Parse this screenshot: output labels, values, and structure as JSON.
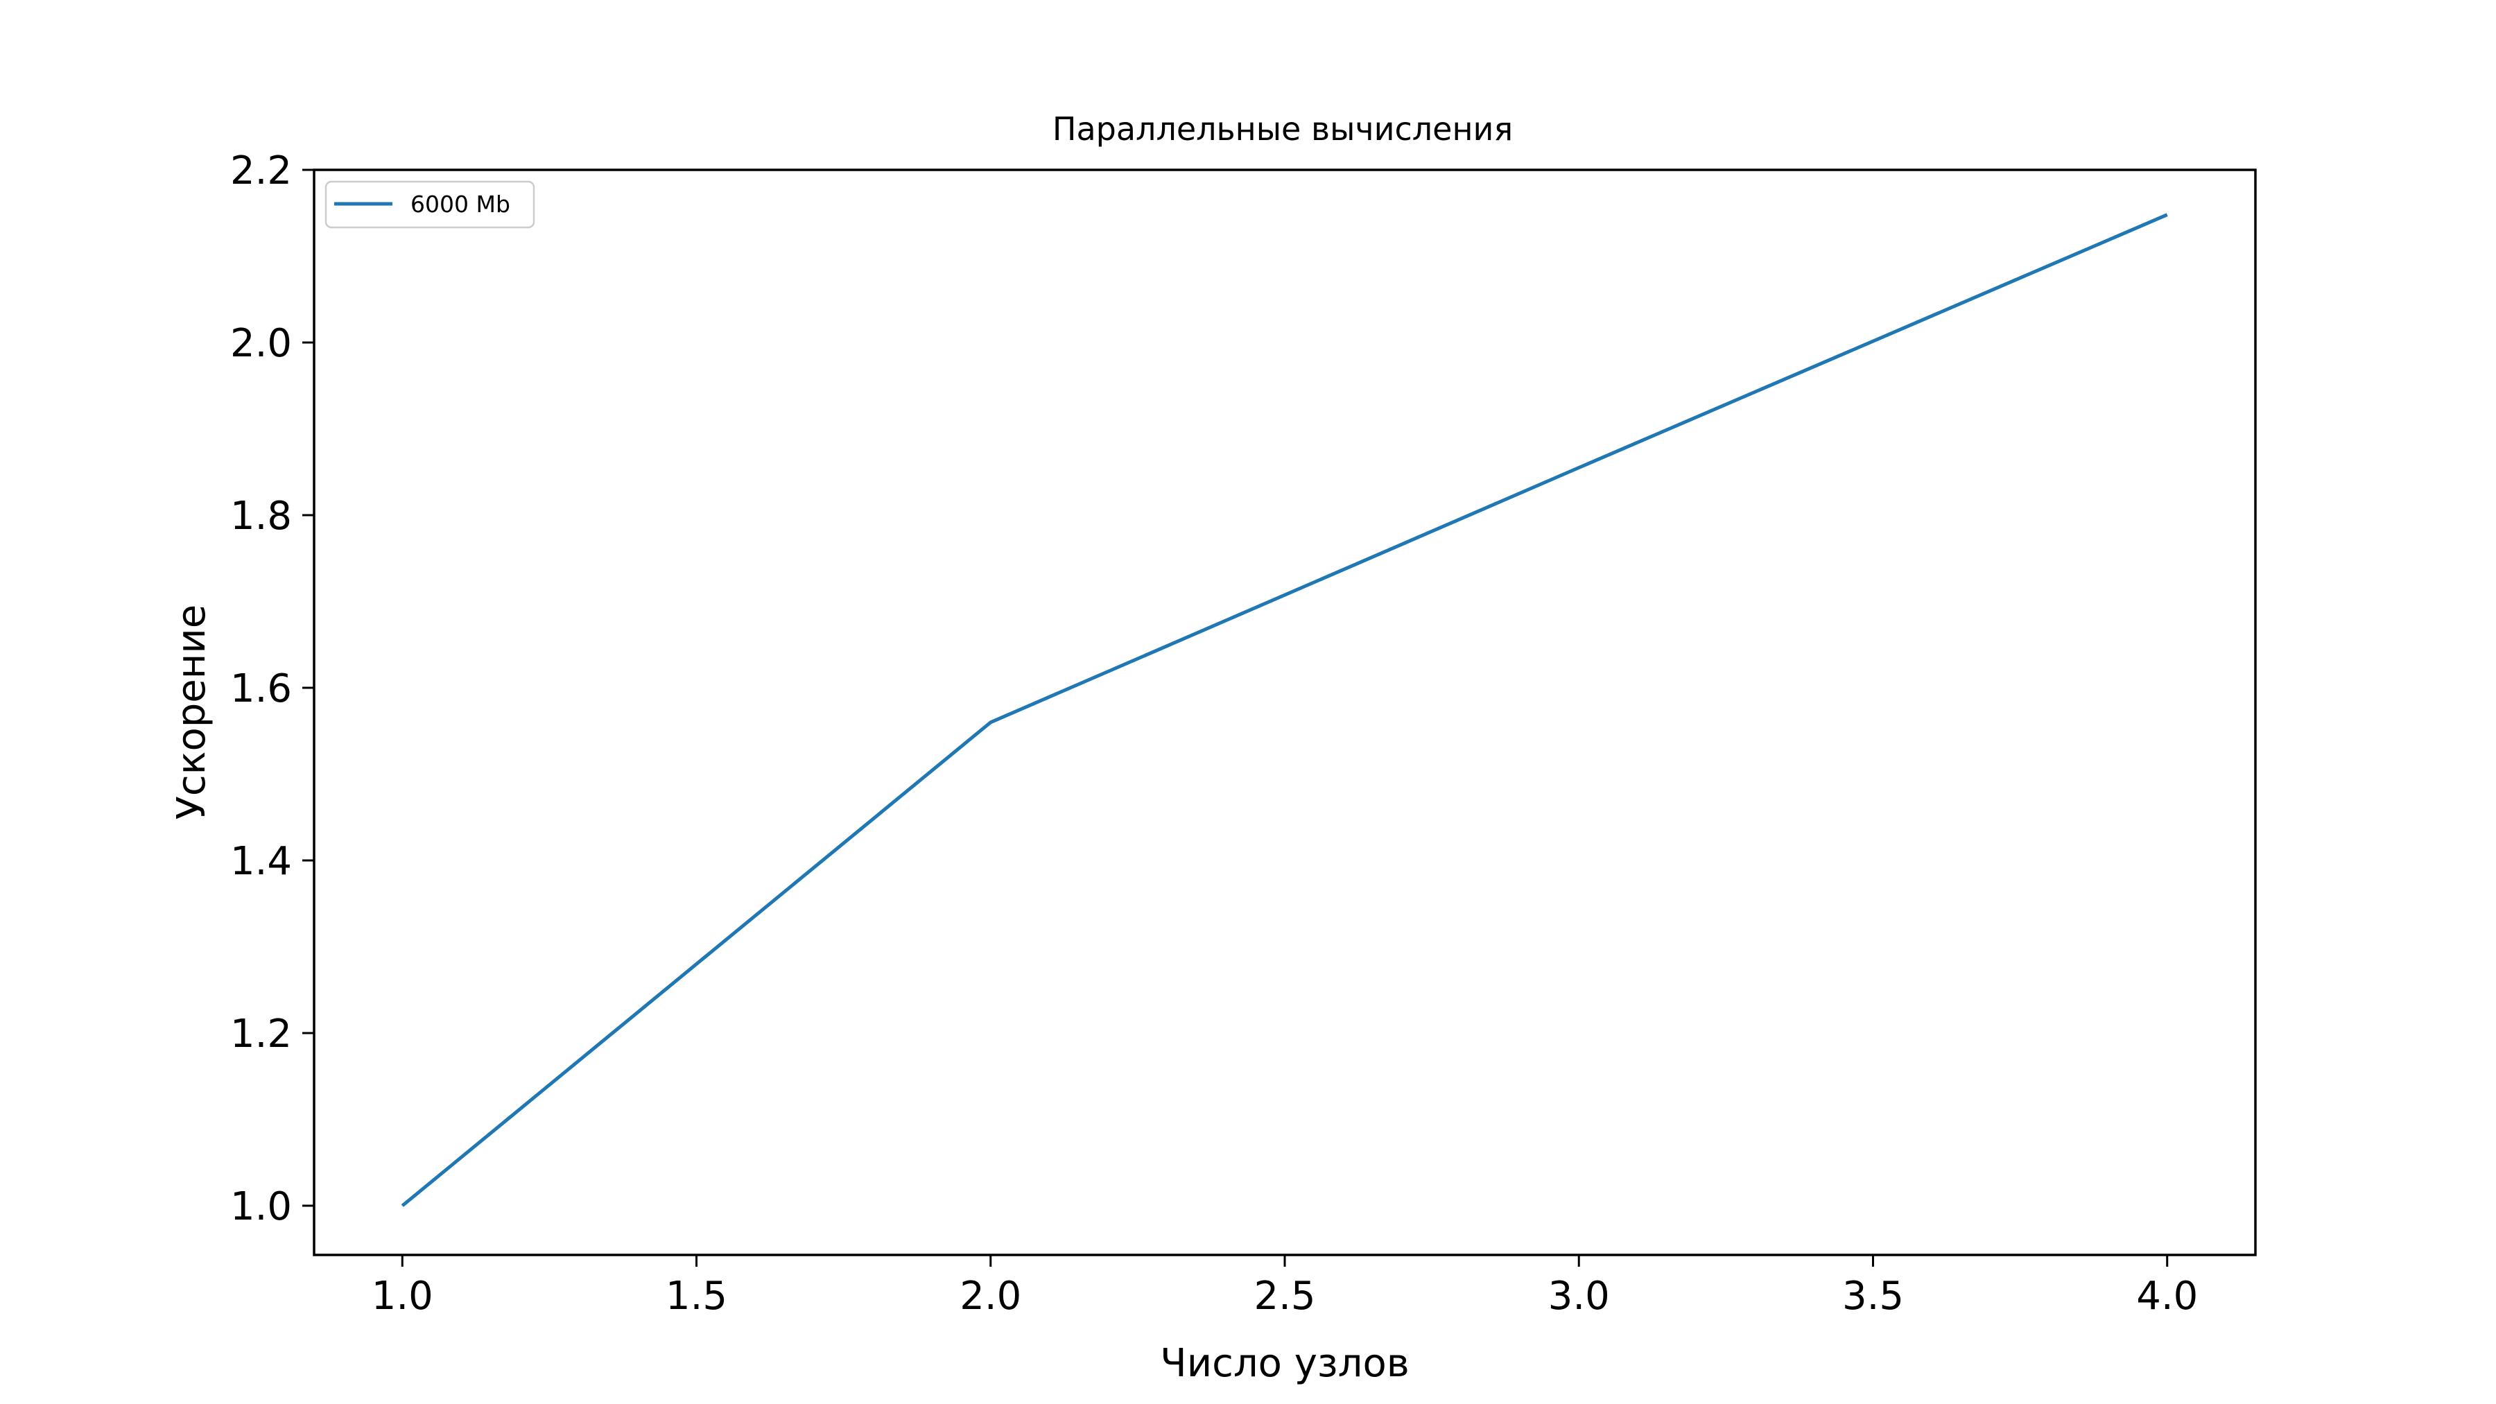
{
  "chart_data": {
    "type": "line",
    "title": "Параллельные вычисления",
    "xlabel": "Число узлов",
    "ylabel": "Ускорение",
    "xlim": [
      0.85,
      4.15
    ],
    "ylim": [
      0.943,
      2.2
    ],
    "xticks": [
      1.0,
      1.5,
      2.0,
      2.5,
      3.0,
      3.5,
      4.0
    ],
    "xtick_labels": [
      "1.0",
      "1.5",
      "2.0",
      "2.5",
      "3.0",
      "3.5",
      "4.0"
    ],
    "yticks": [
      1.0,
      1.2,
      1.4,
      1.6,
      1.8,
      2.0,
      2.2
    ],
    "ytick_labels": [
      "1.0",
      "1.2",
      "1.4",
      "1.6",
      "1.8",
      "2.0",
      "2.2"
    ],
    "grid": false,
    "legend_position": "upper-left",
    "series": [
      {
        "name": "6000 Mb",
        "color": "#1f77b4",
        "x": [
          1,
          2,
          3,
          4
        ],
        "y": [
          1.0,
          1.56,
          1.855,
          2.148
        ]
      }
    ]
  }
}
